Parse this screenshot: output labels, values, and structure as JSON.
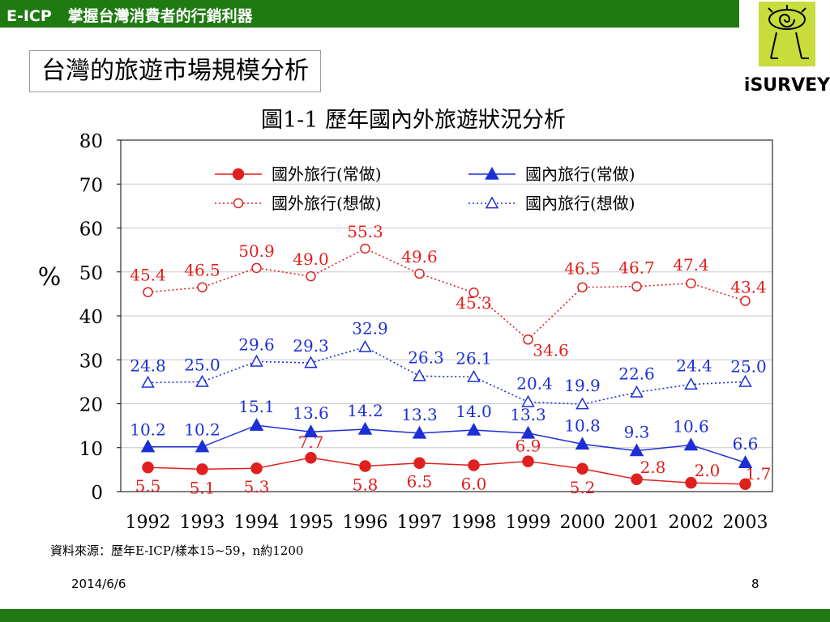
{
  "header": {
    "title": "E-ICP   掌握台灣消費者的行銷利器"
  },
  "logo": {
    "text": "iSURVEY"
  },
  "section_title": "台灣的旅遊市場規模分析",
  "source_note": "資料來源：歷年E-ICP/樣本15~59，n約1200",
  "footer": {
    "date": "2014/6/6",
    "page": "8"
  },
  "colors": {
    "header_green": "#1f7a12",
    "red": "#e0201e",
    "blue": "#1c2fd6"
  },
  "chart_data": {
    "type": "line",
    "title": "圖1-1 歷年國內外旅遊狀況分析",
    "ylabel": "%",
    "xlabel": "",
    "ylim": [
      0,
      80
    ],
    "yticks": [
      0,
      10,
      20,
      30,
      40,
      50,
      60,
      70,
      80
    ],
    "grid": "horizontal",
    "legend_position": "top-center",
    "categories": [
      "1992",
      "1993",
      "1994",
      "1995",
      "1996",
      "1997",
      "1998",
      "1999",
      "2000",
      "2001",
      "2002",
      "2003"
    ],
    "series": [
      {
        "name": "國外旅行(常做)",
        "color": "#e0201e",
        "marker": "filled-circle",
        "line": "solid",
        "values": [
          5.5,
          5.1,
          5.3,
          7.7,
          5.8,
          6.5,
          6.0,
          6.9,
          5.2,
          2.8,
          2.0,
          1.7
        ]
      },
      {
        "name": "國內旅行(常做)",
        "color": "#1c2fd6",
        "marker": "filled-triangle",
        "line": "solid",
        "values": [
          10.2,
          10.2,
          15.1,
          13.6,
          14.2,
          13.3,
          14.0,
          13.3,
          10.8,
          9.3,
          10.6,
          6.6
        ]
      },
      {
        "name": "國外旅行(想做)",
        "color": "#e0201e",
        "marker": "open-circle",
        "line": "dotted",
        "values": [
          45.4,
          46.5,
          50.9,
          49.0,
          55.3,
          49.6,
          45.3,
          34.6,
          46.5,
          46.7,
          47.4,
          43.4
        ]
      },
      {
        "name": "國內旅行(想做)",
        "color": "#1c2fd6",
        "marker": "open-triangle",
        "line": "dotted",
        "values": [
          24.8,
          25.0,
          29.6,
          29.3,
          32.9,
          26.3,
          26.1,
          20.4,
          19.9,
          22.6,
          24.4,
          25.0
        ]
      }
    ],
    "data_label_strings": [
      [
        "5.5",
        "5.1",
        "5.3",
        "7.7",
        "5.8",
        "6.5",
        "6.0",
        "6.9",
        "5.2",
        "2.8",
        "2.0",
        "1.7"
      ],
      [
        "10.2",
        "10.2",
        "15.1",
        "13.6",
        "14.2",
        "13.3",
        "14.0",
        "13.3",
        "10.8",
        "9.3",
        "10.6",
        "6.6"
      ],
      [
        "45.4",
        "46.5",
        "50.9",
        "49.0",
        "55.3",
        "49.6",
        "45.3",
        "34.6",
        "46.5",
        "46.7",
        "47.4",
        "43.4"
      ],
      [
        "24.8",
        "25.0",
        "29.6",
        "29.3",
        "32.9",
        "26.3",
        "26.1",
        "20.4",
        "19.9",
        "22.6",
        "24.4",
        "25.0"
      ]
    ]
  }
}
